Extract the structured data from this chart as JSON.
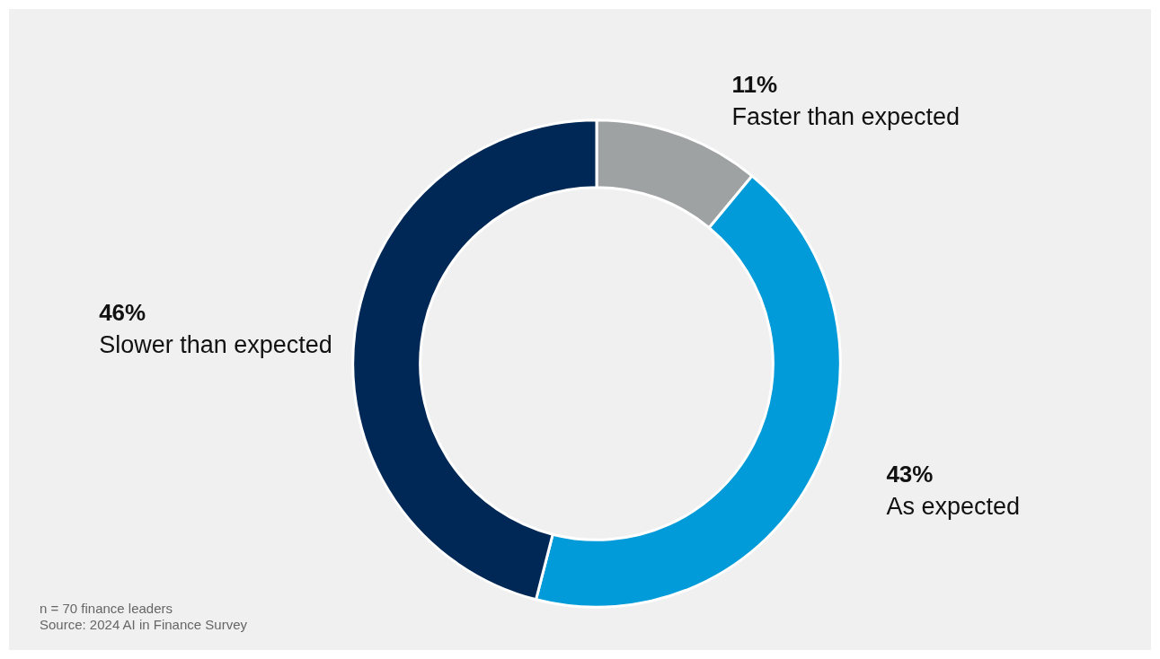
{
  "chart_data": {
    "type": "donut",
    "categories": [
      "Faster than expected",
      "As expected",
      "Slower than expected"
    ],
    "values": [
      11,
      43,
      46
    ],
    "value_labels": [
      "11%",
      "43%",
      "46%"
    ],
    "colors": [
      "#9fa2a3",
      "#009bd8",
      "#002856"
    ],
    "legend": false,
    "annotations": [
      "n = 70 finance leaders",
      "Source: 2024 AI in Finance Survey"
    ]
  }
}
